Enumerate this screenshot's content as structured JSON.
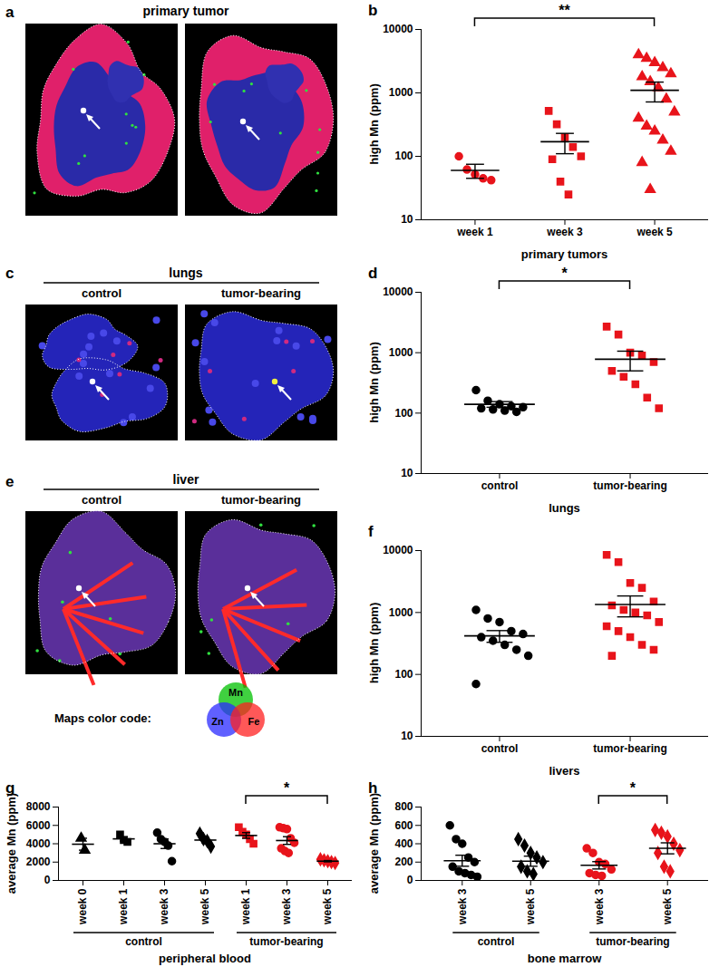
{
  "chart_data": [
    {
      "panel": "b",
      "type": "scatter",
      "x_label": "primary tumors",
      "y_label": "high Mn (ppm)",
      "log": "y",
      "ylim": [
        10,
        10000
      ],
      "yticks": [
        10,
        100,
        1000,
        10000
      ],
      "categories": [
        "week 1",
        "week 3",
        "week 5"
      ],
      "groups": [
        {
          "color": "#e8141b",
          "marker": "circle",
          "values": [
            100,
            62,
            52,
            45,
            42
          ],
          "mean": 60,
          "sem": 15
        },
        {
          "color": "#e8141b",
          "marker": "square",
          "values": [
            520,
            320,
            200,
            140,
            100,
            90,
            40,
            25
          ],
          "mean": 170,
          "sem": 60
        },
        {
          "color": "#e8141b",
          "marker": "triangle",
          "values": [
            4000,
            3500,
            3000,
            2500,
            2000,
            1800,
            1500,
            1200,
            800,
            500,
            400,
            300,
            250,
            180,
            120,
            80,
            30
          ],
          "mean": 1100,
          "sem": 380
        }
      ],
      "significance": [
        {
          "from": 0,
          "to": 2,
          "label": "**"
        }
      ]
    },
    {
      "panel": "d",
      "type": "scatter",
      "x_label": "lungs",
      "y_label": "high Mn (ppm)",
      "log": "y",
      "ylim": [
        10,
        10000
      ],
      "yticks": [
        10,
        100,
        1000,
        10000
      ],
      "categories": [
        "control",
        "tumor-bearing"
      ],
      "groups": [
        {
          "color": "#000000",
          "marker": "circle",
          "values": [
            240,
            160,
            140,
            130,
            125,
            120,
            115,
            110,
            105
          ],
          "mean": 140,
          "sem": 15
        },
        {
          "color": "#e8141b",
          "marker": "square",
          "values": [
            2700,
            2000,
            1000,
            900,
            700,
            500,
            400,
            300,
            180,
            120
          ],
          "mean": 780,
          "sem": 280
        }
      ],
      "significance": [
        {
          "from": 0,
          "to": 1,
          "label": "*"
        }
      ]
    },
    {
      "panel": "f",
      "type": "scatter",
      "x_label": "livers",
      "y_label": "high Mn (ppm)",
      "log": "y",
      "ylim": [
        10,
        10000
      ],
      "yticks": [
        10,
        100,
        1000,
        10000
      ],
      "categories": [
        "control",
        "tumor-bearing"
      ],
      "groups": [
        {
          "color": "#000000",
          "marker": "circle",
          "values": [
            1100,
            800,
            700,
            500,
            450,
            400,
            350,
            300,
            250,
            200,
            70
          ],
          "mean": 420,
          "sem": 90
        },
        {
          "color": "#e8141b",
          "marker": "square",
          "values": [
            8500,
            6500,
            3000,
            2500,
            1500,
            1300,
            1100,
            1000,
            900,
            700,
            600,
            500,
            400,
            300,
            250,
            200
          ],
          "mean": 1350,
          "sem": 500
        }
      ]
    },
    {
      "panel": "g",
      "type": "scatter",
      "x_label": "peripheral blood",
      "y_label": "average Mn (ppm)",
      "ylim": [
        0,
        8000
      ],
      "yticks": [
        0,
        2000,
        4000,
        6000,
        8000
      ],
      "categories": [
        "week 0",
        "week 1",
        "week 3",
        "week 5",
        "week 1",
        "week 3",
        "week 5"
      ],
      "groups": [
        {
          "color": "#000000",
          "marker": "triangle",
          "values": [
            4600,
            3300
          ],
          "mean": 3950,
          "sem": 650
        },
        {
          "color": "#000000",
          "marker": "square",
          "values": [
            5000,
            4400,
            4200
          ],
          "mean": 4530,
          "sem": 240
        },
        {
          "color": "#000000",
          "marker": "circle",
          "values": [
            5200,
            4500,
            4200,
            3800,
            2100
          ],
          "mean": 4000,
          "sem": 520
        },
        {
          "color": "#000000",
          "marker": "diamond",
          "values": [
            5100,
            4500,
            4300,
            3700
          ],
          "mean": 4400,
          "sem": 290
        },
        {
          "color": "#e8141b",
          "marker": "square",
          "values": [
            5800,
            5300,
            5000,
            4500,
            4000
          ],
          "mean": 4900,
          "sem": 310
        },
        {
          "color": "#e8141b",
          "marker": "circle",
          "values": [
            5800,
            5700,
            5600,
            4600,
            4100,
            3500,
            3200,
            3000
          ],
          "mean": 4350,
          "sem": 420
        },
        {
          "color": "#e8141b",
          "marker": "diamond",
          "values": [
            2300,
            2200,
            2100,
            2000,
            1900
          ],
          "mean": 2100,
          "sem": 70
        }
      ],
      "group_labels": [
        {
          "label": "control",
          "from": 0,
          "to": 3
        },
        {
          "label": "tumor-bearing",
          "from": 4,
          "to": 6
        }
      ],
      "significance": [
        {
          "from": 4,
          "to": 6,
          "label": "*"
        }
      ]
    },
    {
      "panel": "h",
      "type": "scatter",
      "x_label": "bone marrow",
      "y_label": "average Mn (ppm)",
      "ylim": [
        0,
        800
      ],
      "yticks": [
        0,
        200,
        400,
        600,
        800
      ],
      "categories": [
        "week 3",
        "week 5",
        "week 3",
        "week 5"
      ],
      "groups": [
        {
          "color": "#000000",
          "marker": "circle",
          "values": [
            600,
            450,
            400,
            250,
            200,
            150,
            100,
            80,
            60,
            40
          ],
          "mean": 215,
          "sem": 60
        },
        {
          "color": "#000000",
          "marker": "diamond",
          "values": [
            450,
            380,
            300,
            250,
            200,
            150,
            100,
            70
          ],
          "mean": 210,
          "sem": 55
        },
        {
          "color": "#e8141b",
          "marker": "circle",
          "values": [
            350,
            300,
            200,
            180,
            120,
            80,
            60,
            50
          ],
          "mean": 165,
          "sem": 40
        },
        {
          "color": "#e8141b",
          "marker": "diamond",
          "values": [
            550,
            520,
            480,
            400,
            330,
            300,
            150,
            100
          ],
          "mean": 350,
          "sem": 60
        }
      ],
      "group_labels": [
        {
          "label": "control",
          "from": 0,
          "to": 1
        },
        {
          "label": "tumor-bearing",
          "from": 2,
          "to": 3
        }
      ],
      "significance": [
        {
          "from": 2,
          "to": 3,
          "label": "*"
        }
      ]
    }
  ],
  "image_panels": [
    {
      "panel": "a",
      "title": "primary tumor",
      "images": 2,
      "kind": "tumor"
    },
    {
      "panel": "c",
      "title": "lungs",
      "image_labels": [
        "control",
        "tumor-bearing"
      ],
      "kind": "lung"
    },
    {
      "panel": "e",
      "title": "liver",
      "image_labels": [
        "control",
        "tumor-bearing"
      ],
      "kind": "liver"
    }
  ],
  "color_code": {
    "title": "Maps color code:",
    "elements": [
      {
        "name": "Mn",
        "color": "#00c000"
      },
      {
        "name": "Zn",
        "color": "#2b2bff"
      },
      {
        "name": "Fe",
        "color": "#ff2020"
      }
    ]
  }
}
